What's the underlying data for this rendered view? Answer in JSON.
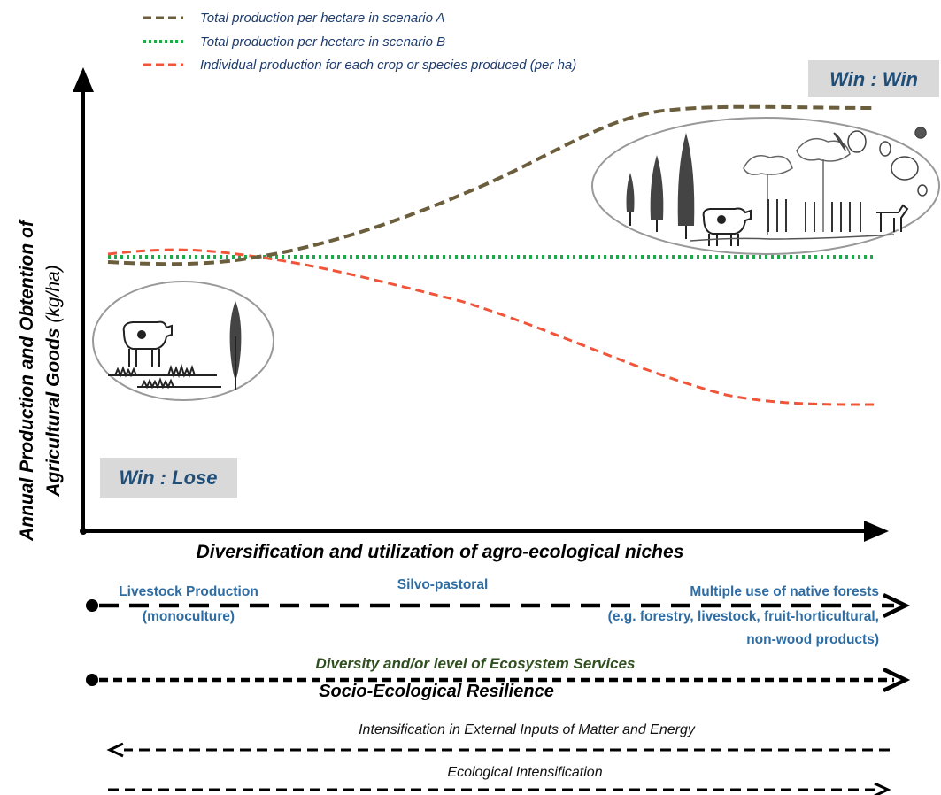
{
  "legend": [
    {
      "label": "Total production per hectare in scenario A",
      "color": "#6b5e3c"
    },
    {
      "label": "Total production per hectare in scenario B",
      "color": "#1fa84a"
    },
    {
      "label": "Individual production for each crop or species produced (per ha)",
      "color": "#f0553a"
    }
  ],
  "axes": {
    "y_title_line1": "Annual Production and  Obtention of",
    "y_title_line2_bold": "Agricultural Goods",
    "y_title_line2_unit": " (kg/ha)",
    "x_title": "Diversification and utilization of agro-ecological niches"
  },
  "badges": {
    "win_win": "Win : Win",
    "win_lose": "Win : Lose"
  },
  "gradient": {
    "left_line1": "Livestock Production",
    "left_line2": "(monoculture)",
    "middle": "Silvo-pastoral",
    "right_line1": "Multiple use of native forests",
    "right_line2": "(e.g. forestry, livestock, fruit-horticultural,",
    "right_line3": "non-wood products)"
  },
  "ecosystem": {
    "services": "Diversity and/or level of Ecosystem Services",
    "resilience": "Socio-Ecological Resilience"
  },
  "intensification": {
    "external": "Intensification in External Inputs of Matter and Energy",
    "ecological": "Ecological Intensification"
  },
  "colors": {
    "scenario_a": "#6b5e3c",
    "scenario_b": "#1fa84a",
    "individual": "#f0553a",
    "badge_bg": "#d9d9d9",
    "blue_text": "#2e6da4",
    "green_text": "#2f4f1f"
  }
}
